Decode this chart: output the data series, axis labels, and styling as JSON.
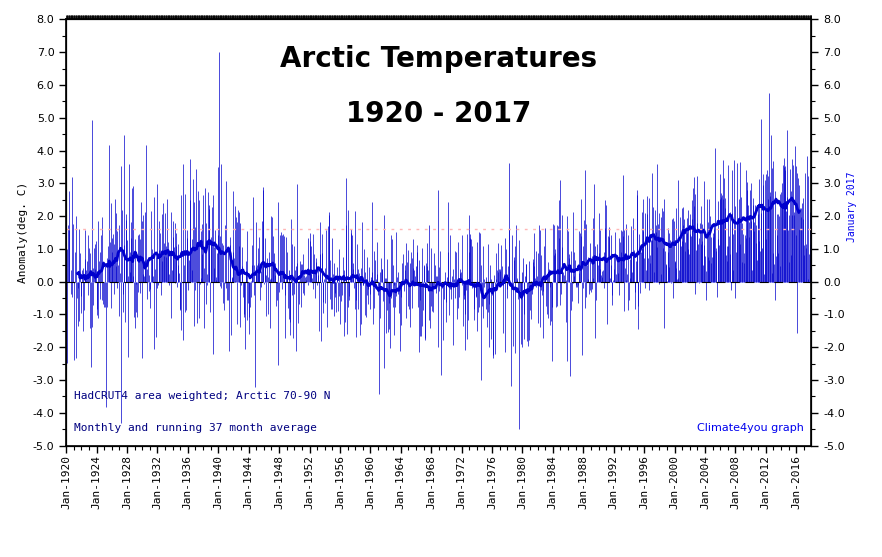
{
  "title_line1": "Arctic Temperatures",
  "title_line2": "1920 - 2017",
  "ylabel": "Anomaly(deg. C)",
  "annotation1": "HadCRUT4 area weighted; Arctic 70-90 N",
  "annotation2": "Monthly and running 37 month average",
  "watermark": "Climate4you graph",
  "right_label": "January 2017",
  "ylim": [
    -5.0,
    8.0
  ],
  "yticks": [
    -5.0,
    -4.0,
    -3.0,
    -2.0,
    -1.0,
    0.0,
    1.0,
    2.0,
    3.0,
    4.0,
    5.0,
    6.0,
    7.0,
    8.0
  ],
  "start_year": 1920,
  "end_year": 2017,
  "n_months": 1176,
  "line_color": "#0000CD",
  "smooth_color": "#0000CD",
  "zero_line_color": "#000000",
  "ref_line_color": "#FFB6B6",
  "ref_line_value": 1.6,
  "background_color": "#FFFFFF",
  "plot_bg_color": "#FFFFFF",
  "title_fontsize": 20,
  "label_fontsize": 8,
  "annotation_fontsize": 8,
  "watermark_color": "#0000EE",
  "right_label_color": "#0000EE",
  "annotation_color": "#000080"
}
